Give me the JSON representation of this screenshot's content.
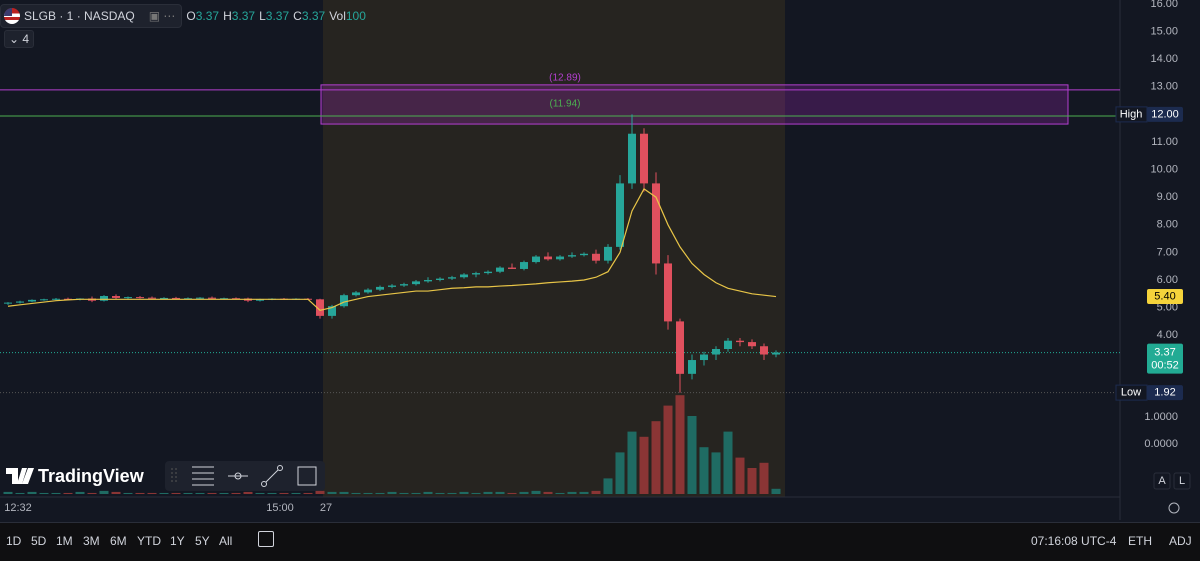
{
  "header": {
    "symbol": "SLGB · 1 · NASDAQ",
    "ohlc": [
      {
        "label": "O",
        "value": 3.37
      },
      {
        "label": "H",
        "value": 3.37
      },
      {
        "label": "L",
        "value": 3.37
      },
      {
        "label": "C",
        "value": 3.37
      }
    ],
    "vol_label": "Vol",
    "volume": 100,
    "indicators": "4"
  },
  "chart_data": {
    "type": "candlestick",
    "open": [
      5.15,
      5.18,
      5.22,
      5.28,
      5.3,
      5.32,
      5.3,
      5.33,
      5.25,
      5.42,
      5.35,
      5.38,
      5.36,
      5.34,
      5.35,
      5.33,
      5.34,
      5.36,
      5.32,
      5.34,
      5.33,
      5.25,
      5.3,
      5.32,
      5.31,
      5.32,
      5.3,
      4.7,
      5.05,
      5.45,
      5.55,
      5.65,
      5.75,
      5.8,
      5.85,
      5.95,
      6.0,
      6.05,
      6.1,
      6.2,
      6.25,
      6.3,
      6.45,
      6.4,
      6.65,
      6.85,
      6.75,
      6.85,
      6.9,
      6.95,
      6.7,
      7.2,
      9.5,
      11.3,
      9.5,
      6.6,
      4.5,
      2.6,
      3.1,
      3.3,
      3.5,
      3.8,
      3.75,
      3.6,
      3.3
    ],
    "high": [
      5.2,
      5.25,
      5.3,
      5.32,
      5.35,
      5.36,
      5.34,
      5.4,
      5.45,
      5.48,
      5.4,
      5.42,
      5.4,
      5.38,
      5.39,
      5.37,
      5.38,
      5.4,
      5.36,
      5.37,
      5.36,
      5.32,
      5.34,
      5.35,
      5.34,
      5.35,
      5.32,
      5.1,
      5.5,
      5.6,
      5.7,
      5.8,
      5.85,
      5.9,
      6.0,
      6.1,
      6.1,
      6.15,
      6.25,
      6.3,
      6.35,
      6.5,
      6.6,
      6.7,
      6.9,
      7.0,
      6.9,
      7.0,
      7.0,
      7.1,
      7.3,
      9.8,
      12.0,
      11.5,
      9.9,
      6.9,
      4.6,
      3.3,
      3.4,
      3.6,
      3.9,
      3.9,
      3.85,
      3.7,
      3.45
    ],
    "low": [
      5.1,
      5.15,
      5.2,
      5.25,
      5.27,
      5.28,
      5.26,
      5.2,
      5.22,
      5.3,
      5.3,
      5.33,
      5.32,
      5.3,
      5.31,
      5.3,
      5.31,
      5.3,
      5.29,
      5.31,
      5.2,
      5.22,
      5.27,
      5.29,
      5.28,
      5.28,
      4.6,
      4.6,
      5.0,
      5.4,
      5.5,
      5.6,
      5.7,
      5.75,
      5.8,
      5.9,
      5.95,
      6.0,
      6.05,
      6.1,
      6.2,
      6.25,
      6.4,
      6.35,
      6.6,
      6.7,
      6.7,
      6.8,
      6.85,
      6.6,
      6.6,
      7.1,
      9.3,
      9.2,
      6.2,
      4.2,
      1.92,
      2.4,
      2.9,
      3.1,
      3.4,
      3.6,
      3.5,
      3.1,
      3.2
    ],
    "close": [
      5.18,
      5.22,
      5.28,
      5.3,
      5.32,
      5.3,
      5.33,
      5.25,
      5.42,
      5.35,
      5.38,
      5.36,
      5.34,
      5.35,
      5.33,
      5.34,
      5.36,
      5.32,
      5.34,
      5.33,
      5.25,
      5.3,
      5.32,
      5.31,
      5.32,
      5.3,
      4.7,
      5.05,
      5.45,
      5.55,
      5.65,
      5.75,
      5.8,
      5.85,
      5.95,
      6.0,
      6.05,
      6.1,
      6.2,
      6.25,
      6.3,
      6.45,
      6.4,
      6.65,
      6.85,
      6.75,
      6.85,
      6.9,
      6.95,
      6.7,
      7.2,
      9.5,
      11.3,
      9.5,
      6.6,
      4.5,
      2.6,
      3.1,
      3.3,
      3.5,
      3.8,
      3.75,
      3.6,
      3.3,
      3.37
    ],
    "volume": [
      2,
      1,
      2,
      1,
      1,
      1,
      2,
      1,
      3,
      2,
      1,
      1,
      1,
      1,
      1,
      1,
      1,
      1,
      1,
      1,
      2,
      1,
      1,
      1,
      1,
      1,
      3,
      2,
      2,
      1,
      1,
      1,
      2,
      1,
      1,
      2,
      1,
      1,
      2,
      1,
      2,
      2,
      1,
      2,
      3,
      2,
      1,
      2,
      2,
      3,
      15,
      40,
      60,
      55,
      70,
      85,
      95,
      75,
      45,
      40,
      60,
      35,
      25,
      30,
      5
    ],
    "ma": {
      "color": "#e8c547",
      "values": [
        5.05,
        5.1,
        5.15,
        5.2,
        5.25,
        5.28,
        5.3,
        5.3,
        5.3,
        5.3,
        5.3,
        5.3,
        5.3,
        5.3,
        5.3,
        5.3,
        5.3,
        5.3,
        5.3,
        5.3,
        5.3,
        5.3,
        5.3,
        5.3,
        5.3,
        5.3,
        4.9,
        5.0,
        5.2,
        5.3,
        5.4,
        5.45,
        5.5,
        5.55,
        5.6,
        5.6,
        5.65,
        5.7,
        5.72,
        5.75,
        5.75,
        5.78,
        5.8,
        5.83,
        5.86,
        5.9,
        5.93,
        5.96,
        6.0,
        6.1,
        6.3,
        7.0,
        8.5,
        9.3,
        9.0,
        8.0,
        7.2,
        6.6,
        6.2,
        5.9,
        5.7,
        5.6,
        5.5,
        5.45,
        5.4
      ]
    },
    "up_color": "#26a69a",
    "down_color": "#e0505e",
    "vol_up_color": "#1f6b63",
    "vol_down_color": "#8a3535",
    "ylim": [
      2,
      16
    ],
    "vlim": [
      0,
      100
    ],
    "yticks": [
      {
        "value": 16,
        "label": "16.00"
      },
      {
        "value": 15,
        "label": "15.00"
      },
      {
        "value": 14,
        "label": "14.00"
      },
      {
        "value": 13,
        "label": "13.00"
      },
      {
        "value": 11,
        "label": "11.00"
      },
      {
        "value": 10,
        "label": "10.00"
      },
      {
        "value": 9,
        "label": "9.00"
      },
      {
        "value": 8,
        "label": "8.00"
      },
      {
        "value": 7,
        "label": "7.00"
      },
      {
        "value": 6,
        "label": "6.00"
      },
      {
        "value": 5,
        "label": "5.00"
      },
      {
        "value": 4,
        "label": "4.00"
      }
    ],
    "pane_labels": [
      "1.0000",
      "0.0000"
    ],
    "zone": [
      11.65,
      13.07
    ],
    "levels": [
      {
        "label": "(12.89)",
        "value": 12.89,
        "color": "#b43fd0"
      },
      {
        "label": "(11.94)",
        "value": 11.94,
        "color": "#4caf50"
      }
    ],
    "price_labels": [
      {
        "tag": "High",
        "value": 12,
        "label": "12.00",
        "bg": "#1c2b4f",
        "fg": "#ffffff"
      },
      {
        "value": 5.4,
        "label": "5.40",
        "bg": "#f5d33b",
        "fg": "#000000"
      },
      {
        "value": 3.37,
        "label": "3.37",
        "sub": "00:52",
        "bg": "#22ab94",
        "fg": "#ffffff",
        "line": true
      },
      {
        "tag": "Low",
        "value": 1.92,
        "label": "1.92",
        "bg": "#1c2b4f",
        "fg": "#ffffff",
        "line": true
      }
    ],
    "xlabels": [
      "12:32",
      "15:00",
      "27"
    ]
  },
  "logo": "TradingView",
  "scale_buttons": [
    "A",
    "L"
  ],
  "toolbar": {
    "ranges": [
      "1D",
      "5D",
      "1M",
      "3M",
      "6M",
      "YTD",
      "1Y",
      "5Y",
      "All"
    ],
    "clock": "07:16:08 UTC-4",
    "session": "ETH",
    "adjust": "ADJ"
  }
}
